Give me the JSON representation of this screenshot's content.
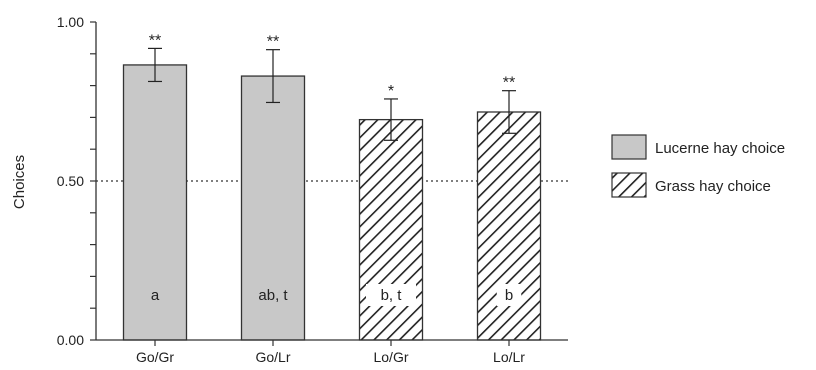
{
  "chart_data": {
    "type": "bar",
    "categories": [
      "Go/Gr",
      "Go/Lr",
      "Lo/Gr",
      "Lo/Lr"
    ],
    "values": [
      0.865,
      0.83,
      0.693,
      0.717
    ],
    "errors": [
      0.052,
      0.083,
      0.065,
      0.067
    ],
    "significance": [
      "**",
      "**",
      "*",
      "**"
    ],
    "group_labels": [
      "a",
      "ab, t",
      "b, t",
      "b"
    ],
    "bar_fill": [
      "lucerne",
      "lucerne",
      "grass",
      "grass"
    ],
    "ylabel": "Choices",
    "ylim": [
      0,
      1
    ],
    "yticks": [
      "0.00",
      "0.50",
      "1.00"
    ],
    "reference_line": 0.5,
    "legend": [
      {
        "key": "lucerne",
        "label": "Lucerne hay choice"
      },
      {
        "key": "grass",
        "label": "Grass hay choice"
      }
    ],
    "legend_position": "right",
    "colors": {
      "lucerne": "#c8c8c8",
      "grass_hatch": "#222222",
      "axis": "#333333"
    }
  }
}
